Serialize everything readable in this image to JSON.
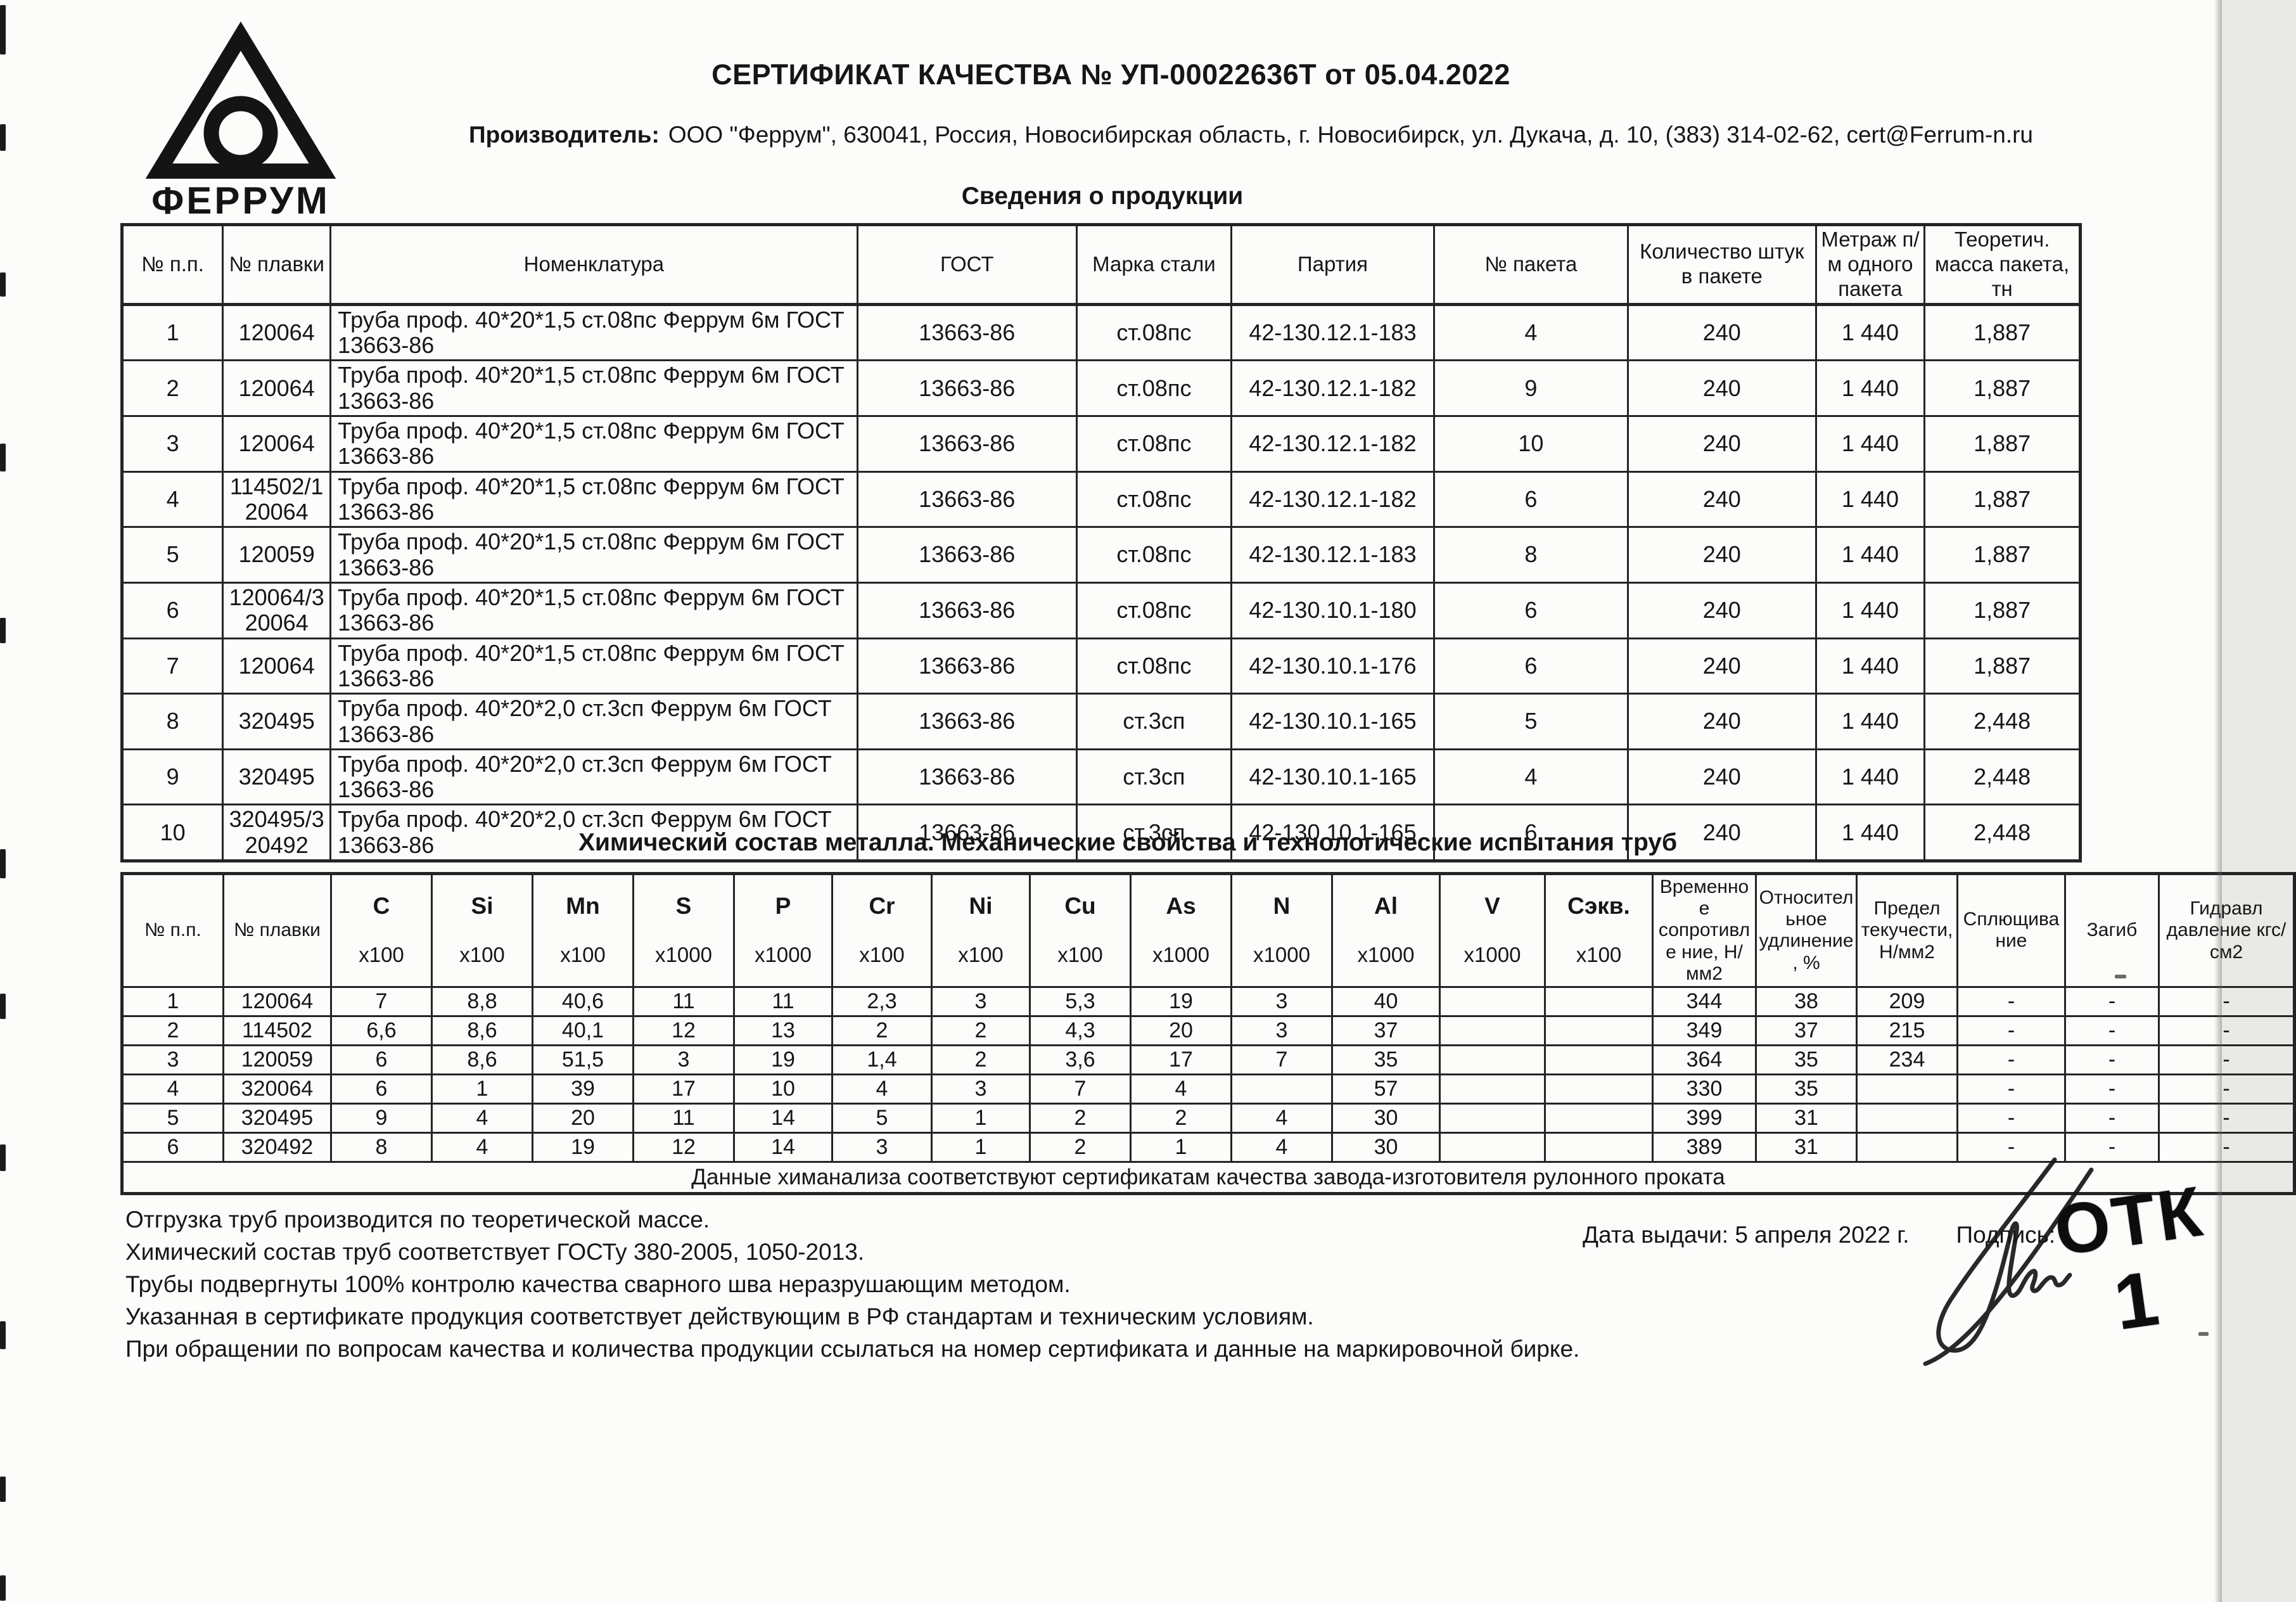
{
  "document": {
    "title": "СЕРТИФИКАТ КАЧЕСТВА № УП-00022636Т от 05.04.2022",
    "manufacturer_label": "Производитель:",
    "manufacturer_value": "ООО \"Феррум\", 630041, Россия, Новосибирская область, г. Новосибирск, ул. Дукача, д. 10, (383) 314-02-62, cert@Ferrum-n.ru",
    "logo_text": "ФЕРРУМ",
    "section1_title": "Сведения о продукции",
    "section2_title": "Химический состав металла. Механические свойства  и технологические испытания труб"
  },
  "products_table": {
    "headers": [
      "№ п.п.",
      "№ плавки",
      "Номенклатура",
      "ГОСТ",
      "Марка стали",
      "Партия",
      "№ пакета",
      "Количество штук в пакете",
      "Метраж п/м одного пакета",
      "Теоретич. масса пакета, тн"
    ],
    "rows": [
      [
        "1",
        "120064",
        "Труба проф. 40*20*1,5 ст.08пс Феррум 6м ГОСТ 13663-86",
        "13663-86",
        "ст.08пс",
        "42-130.12.1-183",
        "4",
        "240",
        "1 440",
        "1,887"
      ],
      [
        "2",
        "120064",
        "Труба проф. 40*20*1,5 ст.08пс Феррум 6м ГОСТ 13663-86",
        "13663-86",
        "ст.08пс",
        "42-130.12.1-182",
        "9",
        "240",
        "1 440",
        "1,887"
      ],
      [
        "3",
        "120064",
        "Труба проф. 40*20*1,5 ст.08пс Феррум 6м ГОСТ 13663-86",
        "13663-86",
        "ст.08пс",
        "42-130.12.1-182",
        "10",
        "240",
        "1 440",
        "1,887"
      ],
      [
        "4",
        "114502/120064",
        "Труба проф. 40*20*1,5 ст.08пс Феррум 6м ГОСТ 13663-86",
        "13663-86",
        "ст.08пс",
        "42-130.12.1-182",
        "6",
        "240",
        "1 440",
        "1,887"
      ],
      [
        "5",
        "120059",
        "Труба проф. 40*20*1,5 ст.08пс Феррум 6м ГОСТ 13663-86",
        "13663-86",
        "ст.08пс",
        "42-130.12.1-183",
        "8",
        "240",
        "1 440",
        "1,887"
      ],
      [
        "6",
        "120064/320064",
        "Труба проф. 40*20*1,5 ст.08пс Феррум 6м ГОСТ 13663-86",
        "13663-86",
        "ст.08пс",
        "42-130.10.1-180",
        "6",
        "240",
        "1 440",
        "1,887"
      ],
      [
        "7",
        "120064",
        "Труба проф. 40*20*1,5 ст.08пс Феррум 6м ГОСТ 13663-86",
        "13663-86",
        "ст.08пс",
        "42-130.10.1-176",
        "6",
        "240",
        "1 440",
        "1,887"
      ],
      [
        "8",
        "320495",
        "Труба проф. 40*20*2,0 ст.3сп Феррум 6м ГОСТ 13663-86",
        "13663-86",
        "ст.3сп",
        "42-130.10.1-165",
        "5",
        "240",
        "1 440",
        "2,448"
      ],
      [
        "9",
        "320495",
        "Труба проф. 40*20*2,0 ст.3сп Феррум 6м ГОСТ 13663-86",
        "13663-86",
        "ст.3сп",
        "42-130.10.1-165",
        "4",
        "240",
        "1 440",
        "2,448"
      ],
      [
        "10",
        "320495/320492",
        "Труба проф. 40*20*2,0 ст.3сп Феррум 6м ГОСТ 13663-86",
        "13663-86",
        "ст.3сп",
        "42-130.10.1-165",
        "6",
        "240",
        "1 440",
        "2,448"
      ]
    ]
  },
  "chem_table": {
    "col_pp": "№ п.п.",
    "col_melt": "№ плавки",
    "elements": [
      {
        "symbol": "C",
        "mult": "x100"
      },
      {
        "symbol": "Si",
        "mult": "x100"
      },
      {
        "symbol": "Mn",
        "mult": "x100"
      },
      {
        "symbol": "S",
        "mult": "x1000"
      },
      {
        "symbol": "P",
        "mult": "x1000"
      },
      {
        "symbol": "Cr",
        "mult": "x100"
      },
      {
        "symbol": "Ni",
        "mult": "x100"
      },
      {
        "symbol": "Cu",
        "mult": "x100"
      },
      {
        "symbol": "As",
        "mult": "x1000"
      },
      {
        "symbol": "N",
        "mult": "x1000"
      },
      {
        "symbol": "Al",
        "mult": "x1000"
      },
      {
        "symbol": "V",
        "mult": "x1000"
      },
      {
        "symbol": "Сэкв.",
        "mult": "x100"
      }
    ],
    "props": [
      "Временное сопротивле ние, Н/мм2",
      "Относител ьное удлинение, %",
      "Предел текучести, Н/мм2",
      "Сплющива ние",
      "Загиб",
      "Гидравл давление кгс/см2"
    ],
    "rows": [
      [
        "1",
        "120064",
        "7",
        "8,8",
        "40,6",
        "11",
        "11",
        "2,3",
        "3",
        "5,3",
        "19",
        "3",
        "40",
        "",
        "",
        "344",
        "38",
        "209",
        "-",
        "-",
        "-"
      ],
      [
        "2",
        "114502",
        "6,6",
        "8,6",
        "40,1",
        "12",
        "13",
        "2",
        "2",
        "4,3",
        "20",
        "3",
        "37",
        "",
        "",
        "349",
        "37",
        "215",
        "-",
        "-",
        "-"
      ],
      [
        "3",
        "120059",
        "6",
        "8,6",
        "51,5",
        "3",
        "19",
        "1,4",
        "2",
        "3,6",
        "17",
        "7",
        "35",
        "",
        "",
        "364",
        "35",
        "234",
        "-",
        "-",
        "-"
      ],
      [
        "4",
        "320064",
        "6",
        "1",
        "39",
        "17",
        "10",
        "4",
        "3",
        "7",
        "4",
        "",
        "57",
        "",
        "",
        "330",
        "35",
        "",
        "-",
        "-",
        "-"
      ],
      [
        "5",
        "320495",
        "9",
        "4",
        "20",
        "11",
        "14",
        "5",
        "1",
        "2",
        "2",
        "4",
        "30",
        "",
        "",
        "399",
        "31",
        "",
        "-",
        "-",
        "-"
      ],
      [
        "6",
        "320492",
        "8",
        "4",
        "19",
        "12",
        "14",
        "3",
        "1",
        "2",
        "1",
        "4",
        "30",
        "",
        "",
        "389",
        "31",
        "",
        "-",
        "-",
        "-"
      ]
    ],
    "note": "Данные химанализа соответствуют сертификатам качества завода-изготовителя рулонного проката"
  },
  "notes": [
    "Отгрузка труб производится по теоретической массе.",
    "Химический состав труб соответствует ГОСТу 380-2005, 1050-2013.",
    "Трубы подвергнуты 100% контролю качества сварного шва неразрушающим методом.",
    "Указанная в сертификате продукция соответствует действующим в РФ стандартам и техническим условиям.",
    "При обращении по вопросам качества и количества продукции ссылаться на номер сертификата и данные на маркировочной бирке."
  ],
  "issue": {
    "date_line": "Дата выдачи: 5 апреля 2022 г.",
    "sign_label": "Подпись:",
    "stamp_line1": "ОТК",
    "stamp_line2": "1"
  }
}
